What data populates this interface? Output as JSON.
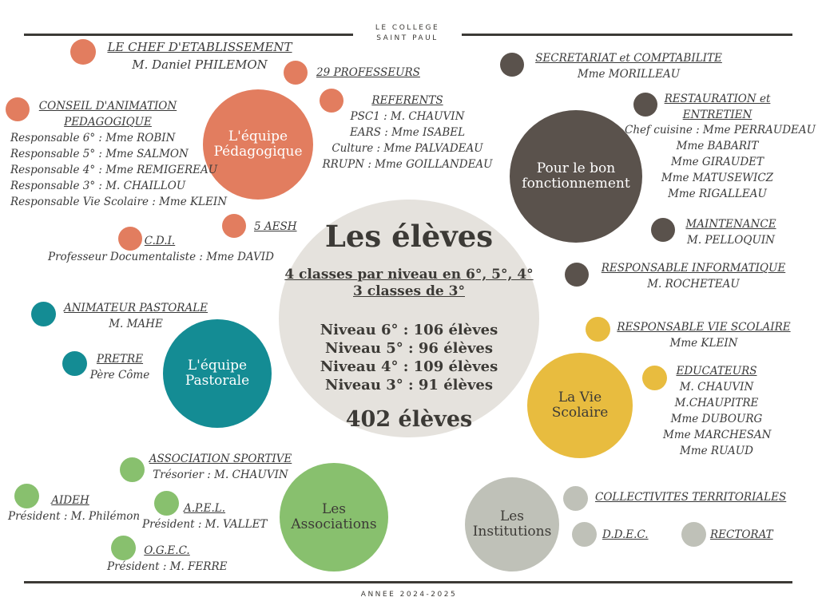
{
  "header": {
    "line1": "LE COLLEGE",
    "line2": "SAINT PAUL"
  },
  "footer": {
    "year": "ANNEE 2024-2025"
  },
  "colors": {
    "pedagogique": "#e27d5f",
    "fonctionnement": "#5a524c",
    "pastorale": "#148c94",
    "vie_scolaire": "#e8bc3f",
    "associations": "#88c06e",
    "institutions": "#bfc1b8",
    "center": "#e5e2dd"
  },
  "center": {
    "title": "Les élèves",
    "sub1": "4 classes par niveau en 6°, 5°, 4° ",
    "sub2": "3 classes de 3°",
    "levels": [
      "Niveau 6° : 106 élèves",
      "Niveau 5° : 96 élèves",
      "Niveau 4° : 109 élèves",
      "Niveau 3° : 91 élèves"
    ],
    "total": "402 élèves"
  },
  "groups": {
    "pedagogique": {
      "line1": "L'équipe",
      "line2": "Pédagogique"
    },
    "fonctionnement": {
      "line1": "Pour le bon",
      "line2": "fonctionnement"
    },
    "pastorale": {
      "line1": "L'équipe",
      "line2": "Pastorale"
    },
    "vie_scolaire": {
      "line1": "La Vie",
      "line2": "Scolaire"
    },
    "associations": {
      "line1": "Les",
      "line2": "Associations"
    },
    "institutions": {
      "line1": "Les",
      "line2": "Institutions"
    }
  },
  "pedagogique": {
    "chef": {
      "title": "LE CHEF D'ETABLISSEMENT",
      "name": "M. Daniel PHILEMON"
    },
    "profs": {
      "title": "29 PROFESSEURS"
    },
    "referents": {
      "title": "REFERENTS",
      "lines": [
        "PSC1 :  M. CHAUVIN",
        "EARS : Mme ISABEL",
        "Culture : Mme PALVADEAU",
        "RRUPN : Mme GOILLANDEAU"
      ]
    },
    "conseil": {
      "title1": "CONSEIL D'ANIMATION",
      "title2": "PEDAGOGIQUE",
      "lines": [
        "Responsable 6° : Mme ROBIN",
        "Responsable 5° : Mme SALMON",
        "Responsable 4° : Mme REMIGEREAU",
        "Responsable 3° : M. CHAILLOU",
        "Responsable Vie Scolaire : Mme KLEIN"
      ]
    },
    "aesh": {
      "title": "5 AESH"
    },
    "cdi": {
      "title": "C.D.I.",
      "name": "Professeur Documentaliste : Mme DAVID"
    }
  },
  "fonctionnement": {
    "secretariat": {
      "title": "SECRETARIAT et COMPTABILITE",
      "name": "Mme MORILLEAU"
    },
    "restauration": {
      "title1": "RESTAURATION et ",
      "title2": "ENTRETIEN",
      "lines": [
        "Chef cuisine : Mme PERRAUDEAU",
        "Mme BABARIT",
        "Mme GIRAUDET",
        "Mme MATUSEWICZ",
        "Mme RIGALLEAU"
      ]
    },
    "maintenance": {
      "title": "MAINTENANCE",
      "name": "M. PELLOQUIN"
    },
    "informatique": {
      "title": "RESPONSABLE INFORMATIQUE",
      "name": "M. ROCHETEAU"
    }
  },
  "pastorale": {
    "animateur": {
      "title": "ANIMATEUR PASTORALE",
      "name": "M. MAHE"
    },
    "pretre": {
      "title": "PRETRE",
      "name": "Père Côme"
    }
  },
  "vie_scolaire": {
    "responsable": {
      "title": "RESPONSABLE VIE SCOLAIRE",
      "name": "Mme KLEIN"
    },
    "educateurs": {
      "title": "EDUCATEURS",
      "lines": [
        "M. CHAUVIN",
        "M.CHAUPITRE",
        "Mme DUBOURG",
        "Mme MARCHESAN",
        "Mme RUAUD"
      ]
    }
  },
  "associations": {
    "sportive": {
      "title": "ASSOCIATION SPORTIVE",
      "name": "Trésorier : M. CHAUVIN"
    },
    "aideh": {
      "title": "AIDEH",
      "name": "Président : M. Philémon"
    },
    "apel": {
      "title": "A.P.E.L.",
      "name": "Président : M. VALLET"
    },
    "ogec": {
      "title": "O.G.E.C.",
      "name": "Président : M. FERRE"
    }
  },
  "institutions": {
    "collectivites": {
      "title": "COLLECTIVITES TERRITORIALES"
    },
    "ddec": {
      "title": "D.D.E.C."
    },
    "rectorat": {
      "title": "RECTORAT"
    }
  }
}
